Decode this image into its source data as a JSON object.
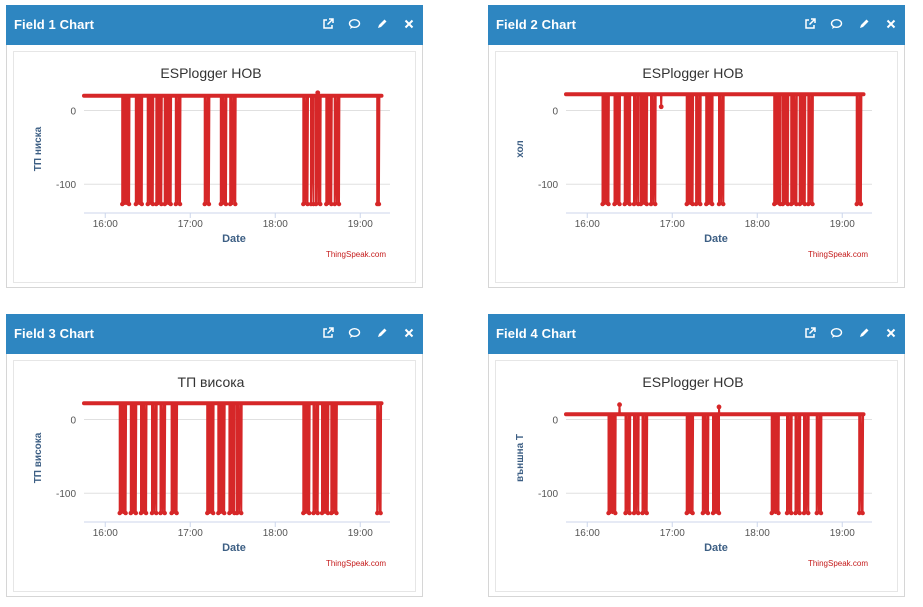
{
  "panels": [
    {
      "title": "Field 1 Chart"
    },
    {
      "title": "Field 2 Chart"
    },
    {
      "title": "Field 3 Chart"
    },
    {
      "title": "Field 4 Chart"
    }
  ],
  "icons": {
    "popout": "external-link-icon",
    "comment": "comment-icon",
    "edit": "pencil-icon",
    "close": "close-icon"
  },
  "colors": {
    "header": "#2e86c1",
    "series": "#d62728",
    "axis_text": "#3d5f84",
    "credit": "#c41a1a"
  },
  "chart_data": [
    {
      "type": "line",
      "title": "ESPlogger HOB",
      "xlabel": "Date",
      "ylabel": "ТП ниска",
      "credit": "ThingSpeak.com",
      "x_ticks": [
        "16:00",
        "17:00",
        "18:00",
        "19:00"
      ],
      "y_ticks": [
        0,
        -100
      ],
      "xlim": [
        15.75,
        19.35
      ],
      "ylim": [
        -135,
        25
      ],
      "baseline": 20,
      "low": -127,
      "high_span": [
        15.75,
        19.25
      ],
      "dips": [
        [
          16.2,
          16.28
        ],
        [
          16.36,
          16.43
        ],
        [
          16.5,
          16.56
        ],
        [
          16.6,
          16.66
        ],
        [
          16.7,
          16.77
        ],
        [
          16.83,
          16.88
        ],
        [
          17.17,
          17.22
        ],
        [
          17.36,
          17.42
        ],
        [
          17.47,
          17.53
        ],
        [
          18.33,
          18.38
        ],
        [
          18.42,
          18.45
        ],
        [
          18.48,
          18.53
        ],
        [
          18.6,
          18.66
        ],
        [
          18.7,
          18.75
        ],
        [
          19.2,
          19.22
        ]
      ],
      "spikes": [
        [
          18.5,
          24
        ]
      ]
    },
    {
      "type": "line",
      "title": "ESPlogger HOB",
      "xlabel": "Date",
      "ylabel": "хол",
      "credit": "ThingSpeak.com",
      "x_ticks": [
        "16:00",
        "17:00",
        "18:00",
        "19:00"
      ],
      "y_ticks": [
        0,
        -100
      ],
      "xlim": [
        15.75,
        19.35
      ],
      "ylim": [
        -135,
        25
      ],
      "baseline": 22,
      "low": -127,
      "high_span": [
        15.75,
        19.25
      ],
      "dips": [
        [
          16.18,
          16.25
        ],
        [
          16.32,
          16.38
        ],
        [
          16.44,
          16.5
        ],
        [
          16.55,
          16.6
        ],
        [
          16.63,
          16.7
        ],
        [
          16.75,
          16.8
        ],
        [
          17.17,
          17.24
        ],
        [
          17.28,
          17.33
        ],
        [
          17.4,
          17.47
        ],
        [
          17.55,
          17.6
        ],
        [
          18.2,
          18.27
        ],
        [
          18.3,
          18.36
        ],
        [
          18.4,
          18.46
        ],
        [
          18.5,
          18.56
        ],
        [
          18.6,
          18.65
        ],
        [
          19.17,
          19.22
        ]
      ],
      "spikes": [
        [
          16.87,
          5
        ]
      ]
    },
    {
      "type": "line",
      "title": "ТП висока",
      "xlabel": "Date",
      "ylabel": "ТП висока",
      "credit": "ThingSpeak.com",
      "x_ticks": [
        "16:00",
        "17:00",
        "18:00",
        "19:00"
      ],
      "y_ticks": [
        0,
        -100
      ],
      "xlim": [
        15.75,
        19.35
      ],
      "ylim": [
        -135,
        25
      ],
      "baseline": 22,
      "low": -127,
      "high_span": [
        15.75,
        19.25
      ],
      "dips": [
        [
          16.17,
          16.24
        ],
        [
          16.3,
          16.36
        ],
        [
          16.42,
          16.48
        ],
        [
          16.55,
          16.6
        ],
        [
          16.65,
          16.7
        ],
        [
          16.78,
          16.84
        ],
        [
          17.2,
          17.27
        ],
        [
          17.33,
          17.4
        ],
        [
          17.46,
          17.52
        ],
        [
          17.55,
          17.6
        ],
        [
          18.33,
          18.4
        ],
        [
          18.45,
          18.5
        ],
        [
          18.55,
          18.62
        ],
        [
          18.66,
          18.72
        ],
        [
          19.2,
          19.24
        ]
      ],
      "spikes": [
        [
          17.25,
          5
        ]
      ]
    },
    {
      "type": "line",
      "title": "ESPlogger HOB",
      "xlabel": "Date",
      "ylabel": "външна Т",
      "credit": "ThingSpeak.com",
      "x_ticks": [
        "16:00",
        "17:00",
        "18:00",
        "19:00"
      ],
      "y_ticks": [
        0,
        -100
      ],
      "xlim": [
        15.75,
        19.35
      ],
      "ylim": [
        -135,
        25
      ],
      "baseline": 7,
      "low": -127,
      "high_span": [
        15.75,
        19.25
      ],
      "dips": [
        [
          16.25,
          16.33
        ],
        [
          16.45,
          16.5
        ],
        [
          16.55,
          16.6
        ],
        [
          16.65,
          16.7
        ],
        [
          17.17,
          17.24
        ],
        [
          17.36,
          17.42
        ],
        [
          17.48,
          17.55
        ],
        [
          18.17,
          18.25
        ],
        [
          18.35,
          18.4
        ],
        [
          18.45,
          18.5
        ],
        [
          18.55,
          18.6
        ],
        [
          18.7,
          18.75
        ],
        [
          19.2,
          19.24
        ]
      ],
      "spikes": [
        [
          16.38,
          20
        ],
        [
          17.55,
          17
        ]
      ]
    }
  ]
}
